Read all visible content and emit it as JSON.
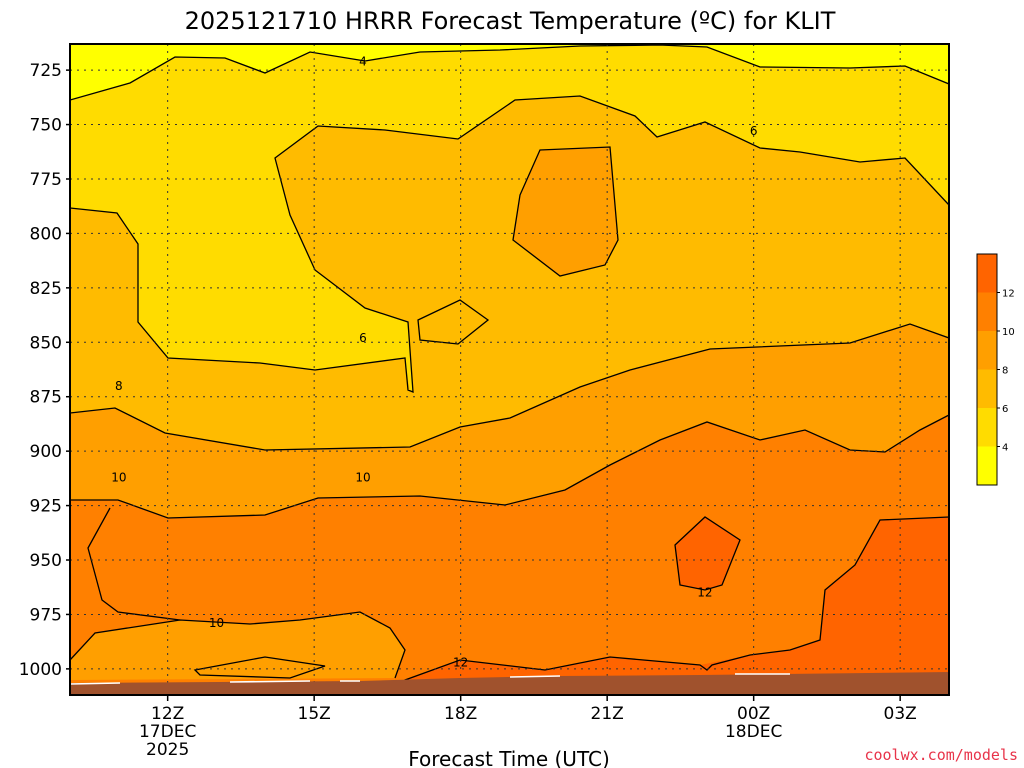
{
  "chart_data": {
    "type": "heatmap",
    "title": "2025121710 HRRR Forecast Temperature (ºC) for KLIT",
    "xlabel": "Forecast Time (UTC)",
    "ylabel": "",
    "y_scale": "pressure (hPa), inverted",
    "ylim": [
      1012,
      713
    ],
    "xlim": [
      "2025-12-17 10Z",
      "2025-12-18 04Z"
    ],
    "y_ticks": [
      725,
      750,
      775,
      800,
      825,
      850,
      875,
      900,
      925,
      950,
      975,
      1000
    ],
    "x_ticks": [
      {
        "time": "2025-12-17 12Z",
        "label": [
          "12Z",
          "17DEC",
          "2025"
        ]
      },
      {
        "time": "2025-12-17 15Z",
        "label": [
          "15Z"
        ]
      },
      {
        "time": "2025-12-17 18Z",
        "label": [
          "18Z"
        ]
      },
      {
        "time": "2025-12-17 21Z",
        "label": [
          "21Z"
        ]
      },
      {
        "time": "2025-12-18 00Z",
        "label": [
          "00Z",
          "18DEC"
        ]
      },
      {
        "time": "2025-12-18 03Z",
        "label": [
          "03Z"
        ]
      }
    ],
    "grid": true,
    "colorbar": {
      "placement": "right",
      "ticks": [
        4,
        6,
        8,
        10,
        12
      ],
      "bins": [
        {
          "from": 2,
          "to": 4,
          "color": "#ffff00"
        },
        {
          "from": 4,
          "to": 6,
          "color": "#ffdc00"
        },
        {
          "from": 6,
          "to": 8,
          "color": "#ffbb00"
        },
        {
          "from": 8,
          "to": 10,
          "color": "#ff9f00"
        },
        {
          "from": 10,
          "to": 12,
          "color": "#ff8000"
        },
        {
          "from": 12,
          "to": 14,
          "color": "#ff6400"
        }
      ]
    },
    "contour_labels": [
      {
        "value": 4,
        "time": "2025-12-17 16Z",
        "pressure": 721
      },
      {
        "value": 6,
        "time": "2025-12-18 00Z",
        "pressure": 753
      },
      {
        "value": 6,
        "time": "2025-12-17 16Z",
        "pressure": 848
      },
      {
        "value": 8,
        "time": "2025-12-17 11Z",
        "pressure": 870
      },
      {
        "value": 10,
        "time": "2025-12-17 11Z",
        "pressure": 912
      },
      {
        "value": 10,
        "time": "2025-12-17 16Z",
        "pressure": 912
      },
      {
        "value": 10,
        "time": "2025-12-17 13Z",
        "pressure": 979
      },
      {
        "value": 12,
        "time": "2025-12-17 18Z",
        "pressure": 997
      },
      {
        "value": 12,
        "time": "2025-12-17 23Z",
        "pressure": 965
      }
    ],
    "ground_color": "#a0522d"
  },
  "credit": "coolwx.com/models"
}
